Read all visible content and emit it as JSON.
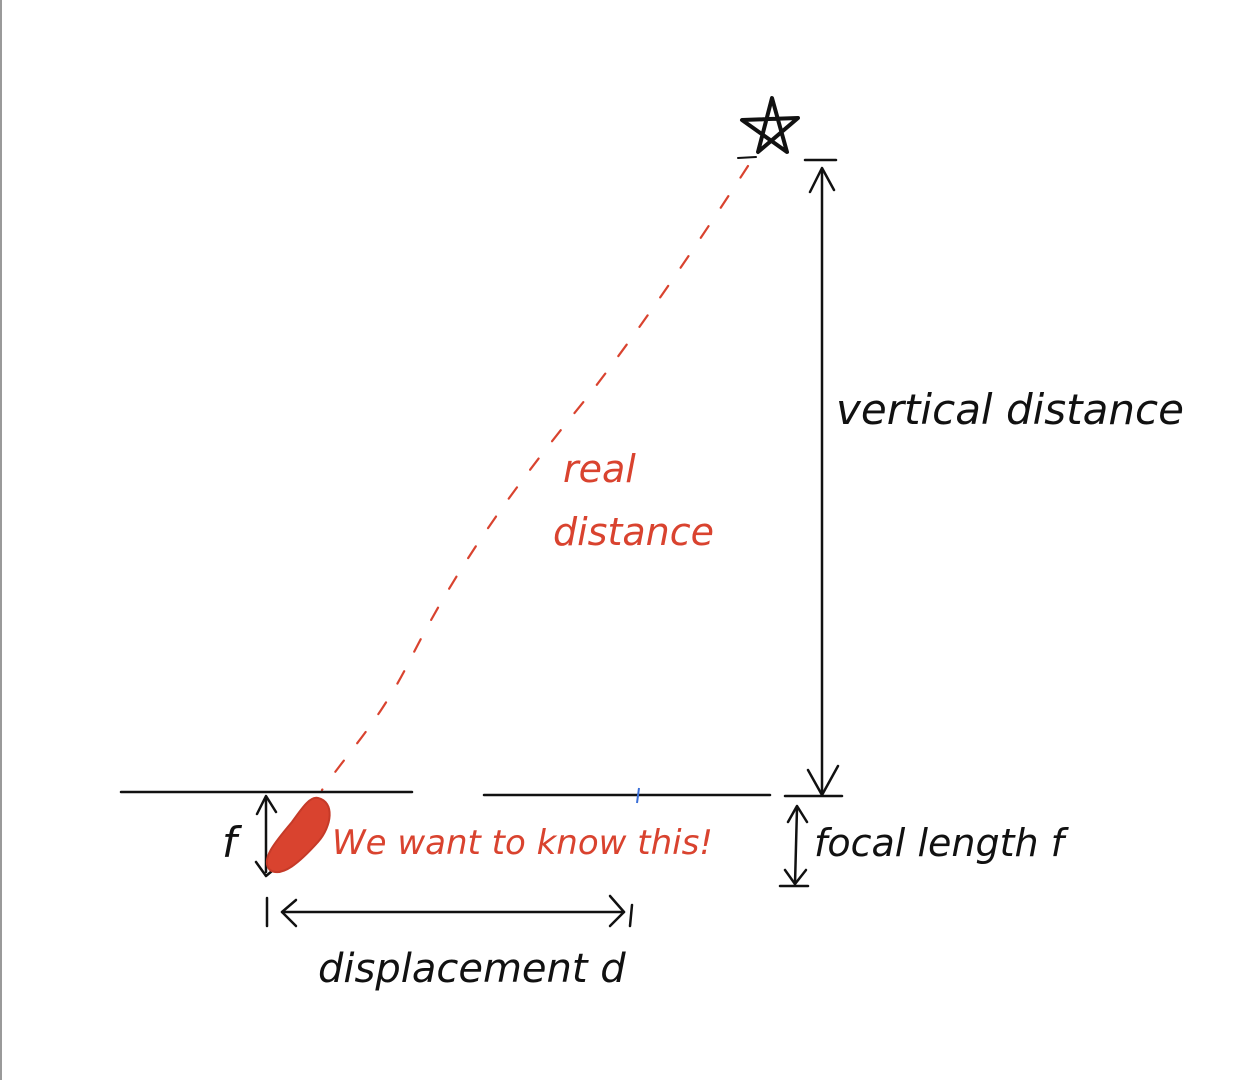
{
  "labels": {
    "vertical_distance": "vertical distance",
    "real_distance_line1": "real",
    "real_distance_line2": "distance",
    "focal_length": "focal length f",
    "f_left": "f",
    "annotation": "We want to know this!",
    "displacement": "displacement d"
  },
  "colors": {
    "ink": "#111111",
    "highlight": "#d9432f",
    "accent": "#3a6fd8",
    "page_edge": "#9a9a9a"
  },
  "icons": {
    "star": "star-icon"
  }
}
